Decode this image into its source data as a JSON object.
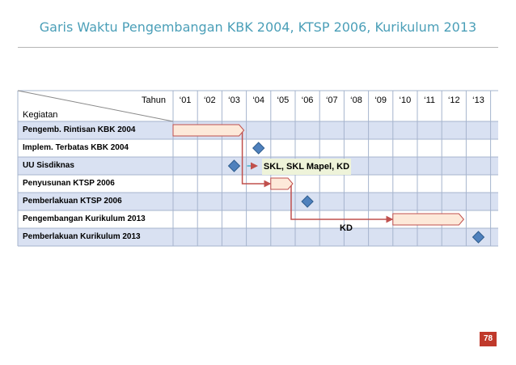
{
  "title": "Garis Waktu Pengembangan KBK 2004, KTSP 2006, Kurikulum  2013",
  "header": {
    "tahun_label": "Tahun",
    "kegiatan_label": "Kegiatan"
  },
  "years": [
    "‘01",
    "‘02",
    "‘03",
    "‘04",
    "‘05",
    "‘06",
    "‘07",
    "‘08",
    "‘09",
    "‘10",
    "‘11",
    "‘12",
    "‘13"
  ],
  "rows": [
    {
      "label": "Pengemb. Rintisan KBK 2004",
      "bar": [
        1,
        3.9
      ]
    },
    {
      "label": "Implem. Terbatas KBK 2004",
      "milestone": 4.5
    },
    {
      "label": "UU Sisdiknas",
      "milestone": 3.5
    },
    {
      "label": "Penyusunan KTSP 2006",
      "bar": [
        5,
        5.9
      ]
    },
    {
      "label": "Pemberlakuan KTSP 2006",
      "milestone": 6.5
    },
    {
      "label": "Pengembangan Kurikulum 2013",
      "bar": [
        10,
        12.9
      ]
    },
    {
      "label": "Pemberlakuan Kurikulum 2013",
      "milestone": 13.5
    }
  ],
  "annotations": {
    "skl": "SKL, SKL Mapel, KD",
    "kd": "KD"
  },
  "colors": {
    "title": "#4b9fb8",
    "bar_fill": "#fde9d9",
    "milestone": "#4f81bd",
    "arrow": "#c0504d",
    "row_alt": "#d9e1f2",
    "grid": "#a6b4cd",
    "badge": "#c0392b"
  },
  "page_number": "78"
}
